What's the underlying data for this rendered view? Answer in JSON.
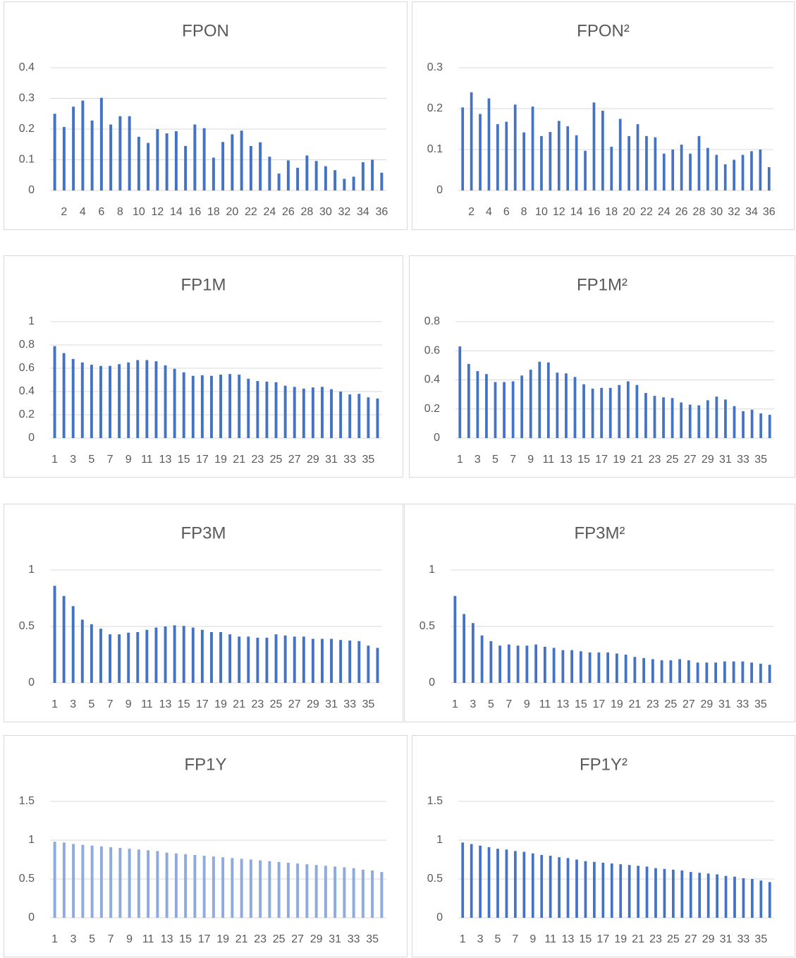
{
  "chart_data": [
    {
      "type": "bar",
      "title": "FPON",
      "color": "#4472c4",
      "grid": true,
      "categories": [
        null,
        2,
        null,
        4,
        null,
        6,
        null,
        8,
        null,
        10,
        null,
        12,
        null,
        14,
        null,
        16,
        null,
        18,
        null,
        20,
        null,
        22,
        null,
        24,
        null,
        26,
        null,
        28,
        null,
        30,
        null,
        32,
        null,
        34,
        null,
        36
      ],
      "values": [
        0.25,
        0.207,
        0.273,
        0.293,
        0.228,
        0.302,
        0.215,
        0.242,
        0.242,
        0.175,
        0.155,
        0.2,
        0.186,
        0.193,
        0.145,
        0.215,
        0.203,
        0.107,
        0.158,
        0.183,
        0.195,
        0.145,
        0.157,
        0.11,
        0.055,
        0.098,
        0.074,
        0.114,
        0.096,
        0.079,
        0.066,
        0.038,
        0.045,
        0.092,
        0.1,
        0.058
      ],
      "ylim": [
        0,
        0.4
      ],
      "yticks": [
        0,
        0.1,
        0.2,
        0.3,
        0.4
      ]
    },
    {
      "type": "bar",
      "title": "FPON²",
      "color": "#4472c4",
      "grid": true,
      "categories": [
        null,
        2,
        null,
        4,
        null,
        6,
        null,
        8,
        null,
        10,
        null,
        12,
        null,
        14,
        null,
        16,
        null,
        18,
        null,
        20,
        null,
        22,
        null,
        24,
        null,
        26,
        null,
        28,
        null,
        30,
        null,
        32,
        null,
        34,
        null,
        36
      ],
      "values": [
        0.203,
        0.24,
        0.187,
        0.225,
        0.162,
        0.168,
        0.21,
        0.142,
        0.205,
        0.133,
        0.143,
        0.17,
        0.157,
        0.135,
        0.097,
        0.215,
        0.195,
        0.107,
        0.175,
        0.133,
        0.162,
        0.133,
        0.13,
        0.09,
        0.1,
        0.112,
        0.09,
        0.133,
        0.104,
        0.087,
        0.064,
        0.075,
        0.087,
        0.096,
        0.1,
        0.057
      ],
      "ylim": [
        0,
        0.3
      ],
      "yticks": [
        0,
        0.1,
        0.2,
        0.3
      ]
    },
    {
      "type": "bar",
      "title": "FP1M",
      "color": "#4472c4",
      "grid": true,
      "categories": [
        1,
        null,
        3,
        null,
        5,
        null,
        7,
        null,
        9,
        null,
        11,
        null,
        13,
        null,
        15,
        null,
        17,
        null,
        19,
        null,
        21,
        null,
        23,
        null,
        25,
        null,
        27,
        null,
        29,
        null,
        31,
        null,
        33,
        null,
        35,
        null
      ],
      "values": [
        0.79,
        0.73,
        0.68,
        0.65,
        0.63,
        0.62,
        0.62,
        0.635,
        0.65,
        0.67,
        0.67,
        0.66,
        0.625,
        0.595,
        0.565,
        0.535,
        0.54,
        0.535,
        0.545,
        0.55,
        0.545,
        0.51,
        0.49,
        0.485,
        0.48,
        0.45,
        0.44,
        0.425,
        0.435,
        0.44,
        0.42,
        0.4,
        0.375,
        0.38,
        0.35,
        0.34
      ],
      "ylim": [
        0,
        1
      ],
      "yticks": [
        0,
        0.2,
        0.4,
        0.6,
        0.8,
        1
      ]
    },
    {
      "type": "bar",
      "title": "FP1M²",
      "color": "#4472c4",
      "grid": true,
      "categories": [
        1,
        null,
        3,
        null,
        5,
        null,
        7,
        null,
        9,
        null,
        11,
        null,
        13,
        null,
        15,
        null,
        17,
        null,
        19,
        null,
        21,
        null,
        23,
        null,
        25,
        null,
        27,
        null,
        29,
        null,
        31,
        null,
        33,
        null,
        35,
        null
      ],
      "values": [
        0.63,
        0.51,
        0.46,
        0.44,
        0.385,
        0.385,
        0.39,
        0.43,
        0.47,
        0.525,
        0.52,
        0.45,
        0.445,
        0.42,
        0.37,
        0.34,
        0.345,
        0.345,
        0.365,
        0.39,
        0.365,
        0.31,
        0.29,
        0.28,
        0.275,
        0.245,
        0.23,
        0.225,
        0.26,
        0.285,
        0.265,
        0.22,
        0.185,
        0.195,
        0.17,
        0.16
      ],
      "ylim": [
        0,
        0.8
      ],
      "yticks": [
        0,
        0.2,
        0.4,
        0.6,
        0.8
      ]
    },
    {
      "type": "bar",
      "title": "FP3M",
      "color": "#4472c4",
      "grid": true,
      "categories": [
        1,
        null,
        3,
        null,
        5,
        null,
        7,
        null,
        9,
        null,
        11,
        null,
        13,
        null,
        15,
        null,
        17,
        null,
        19,
        null,
        21,
        null,
        23,
        null,
        25,
        null,
        27,
        null,
        29,
        null,
        31,
        null,
        33,
        null,
        35,
        null
      ],
      "values": [
        0.86,
        0.77,
        0.68,
        0.56,
        0.52,
        0.48,
        0.43,
        0.43,
        0.445,
        0.45,
        0.47,
        0.49,
        0.5,
        0.51,
        0.505,
        0.49,
        0.47,
        0.45,
        0.45,
        0.43,
        0.41,
        0.41,
        0.4,
        0.4,
        0.43,
        0.42,
        0.41,
        0.41,
        0.39,
        0.39,
        0.39,
        0.38,
        0.375,
        0.37,
        0.33,
        0.31
      ],
      "ylim": [
        0,
        1
      ],
      "yticks": [
        0,
        0.5,
        1
      ]
    },
    {
      "type": "bar",
      "title": "FP3M²",
      "color": "#4472c4",
      "grid": true,
      "categories": [
        1,
        null,
        3,
        null,
        5,
        null,
        7,
        null,
        9,
        null,
        11,
        null,
        13,
        null,
        15,
        null,
        17,
        null,
        19,
        null,
        21,
        null,
        23,
        null,
        25,
        null,
        27,
        null,
        29,
        null,
        31,
        null,
        33,
        null,
        35,
        null
      ],
      "values": [
        0.77,
        0.61,
        0.53,
        0.42,
        0.37,
        0.33,
        0.34,
        0.33,
        0.33,
        0.34,
        0.32,
        0.31,
        0.29,
        0.29,
        0.28,
        0.27,
        0.27,
        0.27,
        0.26,
        0.25,
        0.23,
        0.22,
        0.21,
        0.2,
        0.2,
        0.21,
        0.2,
        0.18,
        0.18,
        0.18,
        0.19,
        0.19,
        0.19,
        0.18,
        0.17,
        0.16
      ],
      "ylim": [
        0,
        1
      ],
      "yticks": [
        0,
        0.5,
        1
      ]
    },
    {
      "type": "bar",
      "title": "FP1Y",
      "color": "#8faadc",
      "grid": true,
      "categories": [
        1,
        null,
        3,
        null,
        5,
        null,
        7,
        null,
        9,
        null,
        11,
        null,
        13,
        null,
        15,
        null,
        17,
        null,
        19,
        null,
        21,
        null,
        23,
        null,
        25,
        null,
        27,
        null,
        29,
        null,
        31,
        null,
        33,
        null,
        35,
        null
      ],
      "values": [
        0.98,
        0.97,
        0.95,
        0.94,
        0.93,
        0.92,
        0.91,
        0.9,
        0.89,
        0.88,
        0.87,
        0.86,
        0.84,
        0.83,
        0.82,
        0.81,
        0.8,
        0.79,
        0.78,
        0.77,
        0.76,
        0.75,
        0.74,
        0.73,
        0.72,
        0.71,
        0.7,
        0.69,
        0.68,
        0.67,
        0.66,
        0.65,
        0.64,
        0.62,
        0.61,
        0.59
      ],
      "ylim": [
        0,
        1.5
      ],
      "yticks": [
        0,
        0.5,
        1,
        1.5
      ]
    },
    {
      "type": "bar",
      "title": "FP1Y²",
      "color": "#4472c4",
      "grid": true,
      "categories": [
        1,
        null,
        3,
        null,
        5,
        null,
        7,
        null,
        9,
        null,
        11,
        null,
        13,
        null,
        15,
        null,
        17,
        null,
        19,
        null,
        21,
        null,
        23,
        null,
        25,
        null,
        27,
        null,
        29,
        null,
        31,
        null,
        33,
        null,
        35,
        null
      ],
      "values": [
        0.97,
        0.95,
        0.93,
        0.91,
        0.89,
        0.88,
        0.86,
        0.85,
        0.83,
        0.81,
        0.8,
        0.78,
        0.77,
        0.75,
        0.73,
        0.72,
        0.71,
        0.7,
        0.69,
        0.68,
        0.67,
        0.66,
        0.64,
        0.63,
        0.62,
        0.61,
        0.59,
        0.58,
        0.57,
        0.56,
        0.54,
        0.53,
        0.51,
        0.5,
        0.48,
        0.46
      ],
      "ylim": [
        0,
        1.5
      ],
      "yticks": [
        0,
        0.5,
        1,
        1.5
      ]
    }
  ]
}
